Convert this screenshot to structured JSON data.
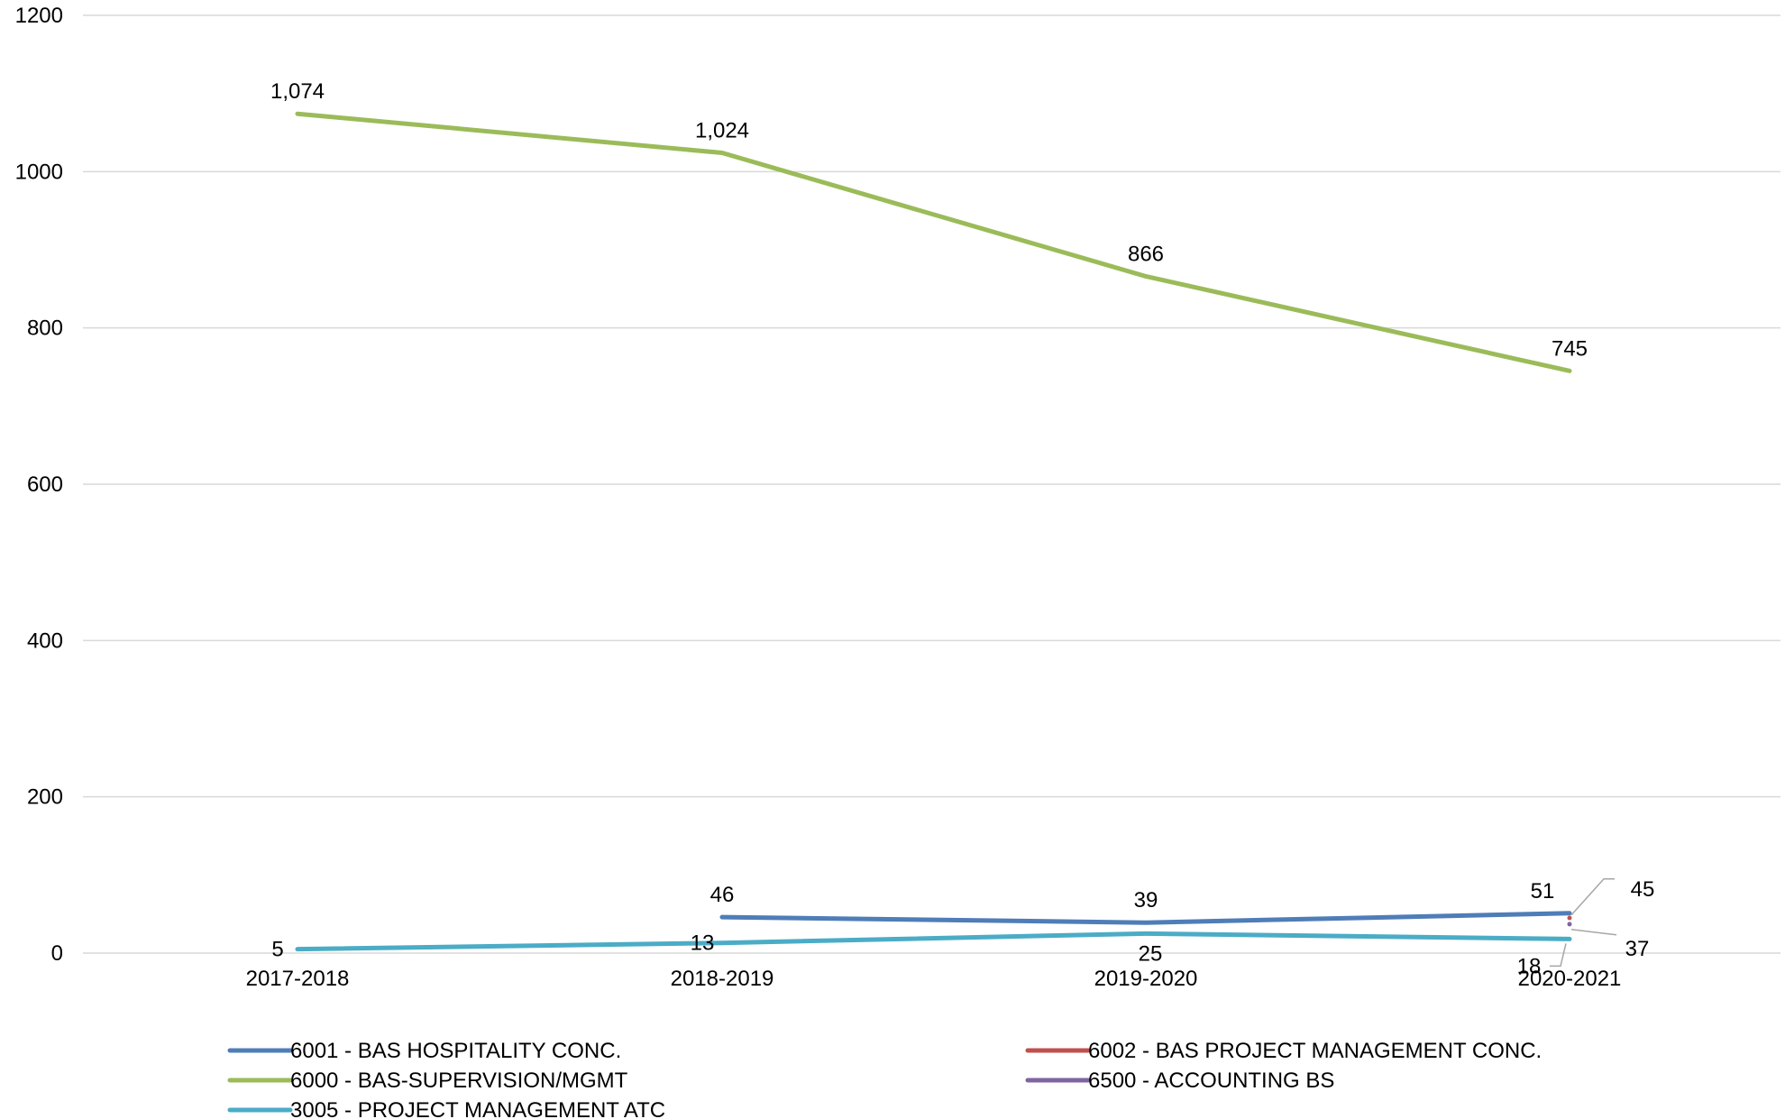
{
  "chart_data": {
    "type": "line",
    "title": "",
    "xlabel": "",
    "ylabel": "",
    "categories": [
      "2017-2018",
      "2018-2019",
      "2019-2020",
      "2020-2021"
    ],
    "ylim": [
      0,
      1200
    ],
    "yticks": [
      0,
      200,
      400,
      600,
      800,
      1000,
      1200
    ],
    "grid": "horizontal",
    "legend_position": "bottom",
    "series": [
      {
        "name": "6001 - BAS HOSPITALITY CONC.",
        "color": "#4F7DB8",
        "values": [
          null,
          46,
          39,
          51
        ],
        "labels": [
          "",
          "46",
          "39",
          "51"
        ]
      },
      {
        "name": "6002 - BAS PROJECT MANAGEMENT CONC.",
        "color": "#C0504D",
        "values": [
          null,
          null,
          null,
          45
        ],
        "labels": [
          "",
          "",
          "",
          "45"
        ]
      },
      {
        "name": "6000 - BAS-SUPERVISION/MGMT",
        "color": "#9BBB59",
        "values": [
          1074,
          1024,
          866,
          745
        ],
        "labels": [
          "1,074",
          "1,024",
          "866",
          "745"
        ]
      },
      {
        "name": "6500 - ACCOUNTING BS",
        "color": "#8064A2",
        "values": [
          null,
          null,
          null,
          37
        ],
        "labels": [
          "",
          "",
          "",
          "37"
        ]
      },
      {
        "name": "3005 - PROJECT MANAGEMENT ATC",
        "color": "#4BACC6",
        "values": [
          5,
          13,
          25,
          18
        ],
        "labels": [
          "5",
          "13",
          "25",
          "18"
        ]
      }
    ]
  }
}
